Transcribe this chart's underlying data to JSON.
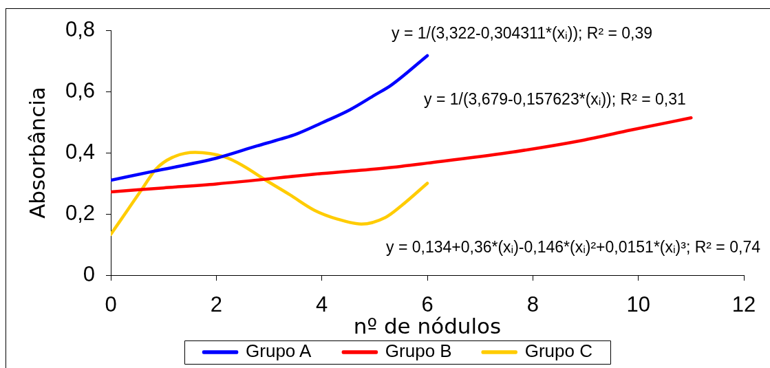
{
  "chart_data": {
    "type": "line",
    "xlabel": "nº de nódulos",
    "ylabel": "Absorbância",
    "xlim": [
      0,
      12
    ],
    "xticks": [
      0,
      2,
      4,
      6,
      8,
      10,
      12
    ],
    "ylim": [
      0,
      0.8
    ],
    "yticks": [
      0,
      {
        "value": 0.2,
        "label": "0,2"
      },
      {
        "value": 0.4,
        "label": "0,4"
      },
      {
        "value": 0.6,
        "label": "0,6"
      },
      {
        "value": 0.8,
        "label": "0,8"
      }
    ],
    "legend": "bottom",
    "annotations": [
      "y = 1/(3,322-0,304311*(xᵢ)); R² = 0,39",
      "y = 1/(3,679-0,157623*(xᵢ)); R² = 0,31",
      "y = 0,134+0,36*(xᵢ)-0,146*(xᵢ)²+0,0151*(xᵢ)³; R² = 0,74"
    ],
    "series": [
      {
        "name": "Grupo A",
        "color": "#0000ff",
        "x": [
          0,
          0.8,
          2,
          2.77,
          3.21,
          3.52,
          4.02,
          4.53,
          5.01,
          5.31,
          6
        ],
        "values": [
          0.31,
          0.339,
          0.382,
          0.422,
          0.444,
          0.461,
          0.499,
          0.54,
          0.589,
          0.62,
          0.717
        ]
      },
      {
        "name": "Grupo B",
        "color": "#ff0000",
        "x": [
          0,
          1,
          2,
          4,
          5.21,
          6,
          7.53,
          8.93,
          9.86,
          11
        ],
        "values": [
          0.272,
          0.285,
          0.298,
          0.332,
          0.35,
          0.366,
          0.4,
          0.44,
          0.474,
          0.514
        ]
      },
      {
        "name": "Grupo C",
        "color": "#ffcc00",
        "x": [
          0,
          0.3,
          0.6,
          0.86,
          1.16,
          1.6,
          2.16,
          2.5,
          2.95,
          3.4,
          3.86,
          4.3,
          4.75,
          5.21,
          5.51,
          6
        ],
        "values": [
          0.133,
          0.208,
          0.283,
          0.347,
          0.384,
          0.401,
          0.386,
          0.358,
          0.309,
          0.262,
          0.212,
          0.183,
          0.167,
          0.189,
          0.227,
          0.3
        ]
      }
    ]
  }
}
